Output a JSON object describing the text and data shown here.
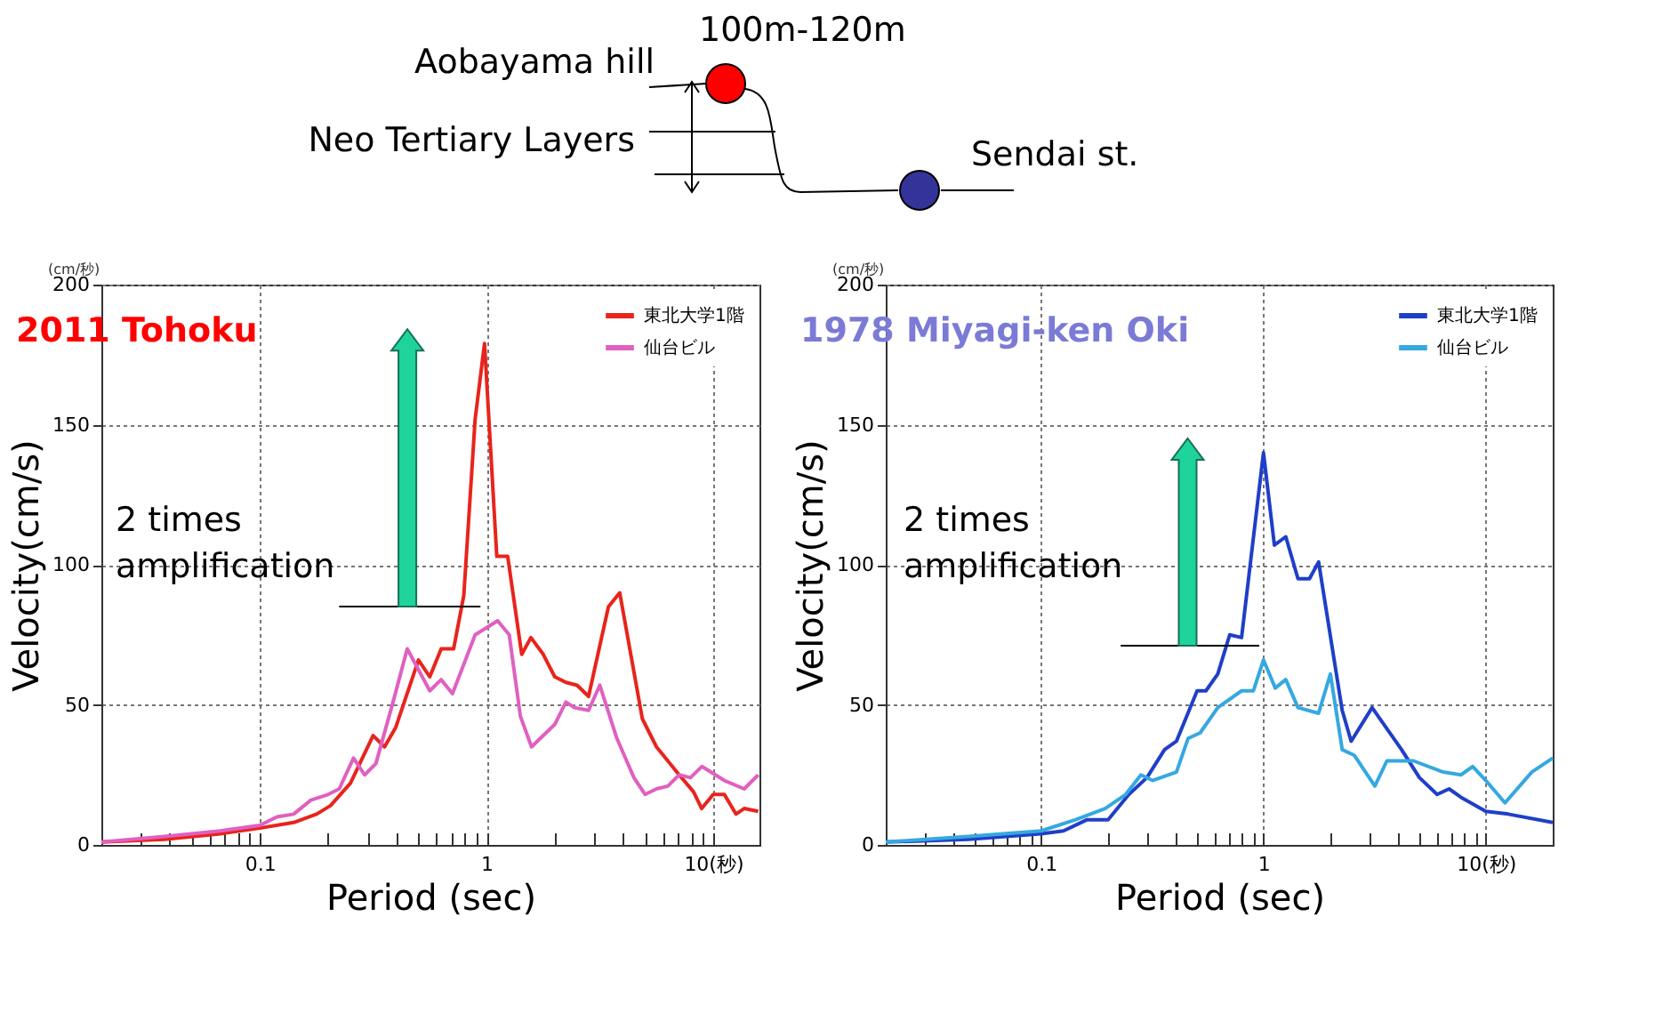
{
  "chart_data": [
    {
      "type": "other",
      "annotations": [
        "100m-120m",
        "Aobayama hill",
        "Neo Tertiary Layers",
        "Sendai st."
      ]
    },
    {
      "type": "line",
      "title": "2011 Tohoku",
      "xlabel": "Period (sec)",
      "ylabel": "Velocity(cm/s)",
      "log": "x",
      "grid": true,
      "legend": "top right",
      "annotations": [
        "(cm/秒)",
        "2 times amplification"
      ],
      "xlim": [
        0.02,
        16
      ],
      "ylim": [
        0,
        200
      ],
      "xticks": [
        {
          "value": 0.03,
          "label": null
        },
        {
          "value": 0.04,
          "label": null
        },
        {
          "value": 0.05,
          "label": null
        },
        {
          "value": 0.06,
          "label": null
        },
        {
          "value": 0.07,
          "label": null
        },
        {
          "value": 0.08,
          "label": null
        },
        {
          "value": 0.09,
          "label": null
        },
        {
          "value": 0.1,
          "label": "0.1"
        },
        {
          "value": 0.2,
          "label": null
        },
        {
          "value": 0.3,
          "label": null
        },
        {
          "value": 0.4,
          "label": null
        },
        {
          "value": 0.5,
          "label": null
        },
        {
          "value": 0.6,
          "label": null
        },
        {
          "value": 0.7,
          "label": null
        },
        {
          "value": 0.8,
          "label": null
        },
        {
          "value": 0.9,
          "label": null
        },
        {
          "value": 1,
          "label": "1"
        },
        {
          "value": 2,
          "label": null
        },
        {
          "value": 3,
          "label": null
        },
        {
          "value": 4,
          "label": null
        },
        {
          "value": 5,
          "label": null
        },
        {
          "value": 6,
          "label": null
        },
        {
          "value": 7,
          "label": null
        },
        {
          "value": 8,
          "label": null
        },
        {
          "value": 9,
          "label": null
        },
        {
          "value": 10,
          "label": "10(秒)"
        }
      ],
      "yticks": [
        0,
        50,
        100,
        150,
        200
      ],
      "series": [
        {
          "name": "東北大学1階",
          "color": "#e8241c",
          "x": [
            0.02,
            0.038,
            0.067,
            0.1,
            0.141,
            0.178,
            0.205,
            0.251,
            0.316,
            0.355,
            0.398,
            0.501,
            0.562,
            0.631,
            0.716,
            0.794,
            0.891,
            0.98,
            1.11,
            1.24,
            1.43,
            1.57,
            1.78,
            2.0,
            2.24,
            2.51,
            2.82,
            3.45,
            3.87,
            4.87,
            5.62,
            7.08,
            8.18,
            8.9,
            10,
            11.2,
            12.6,
            13.7,
            15.8
          ],
          "values": [
            1,
            2,
            4,
            6,
            8,
            11,
            14,
            22,
            39,
            35,
            42,
            66,
            60,
            70,
            70,
            89,
            152,
            179,
            103,
            103,
            68,
            74,
            68,
            60,
            58,
            57,
            53,
            85,
            90,
            45,
            35,
            25,
            19,
            13,
            18,
            18,
            11,
            13,
            12
          ]
        },
        {
          "name": "仙台ビル",
          "color": "#e060c0",
          "x": [
            0.02,
            0.038,
            0.067,
            0.1,
            0.119,
            0.141,
            0.168,
            0.2,
            0.224,
            0.259,
            0.29,
            0.325,
            0.387,
            0.447,
            0.562,
            0.631,
            0.708,
            0.891,
            1.12,
            1.26,
            1.41,
            1.58,
            2.0,
            2.24,
            2.44,
            2.82,
            3.16,
            3.76,
            4.47,
            5.01,
            5.62,
            6.31,
            7.08,
            7.94,
            8.91,
            11.2,
            13.7,
            15.8
          ],
          "values": [
            1,
            3,
            5,
            7,
            10,
            11,
            16,
            18,
            20,
            31,
            25,
            29,
            51,
            70,
            55,
            59,
            54,
            75,
            80,
            75,
            46,
            35,
            43,
            51,
            49,
            48,
            57,
            38,
            24,
            18,
            20,
            21,
            25,
            24,
            28,
            23,
            20,
            25
          ]
        }
      ]
    },
    {
      "type": "line",
      "title": "1978 Miyagi-ken Oki",
      "xlabel": "Period (sec)",
      "ylabel": "Velocity(cm/s)",
      "log": "x",
      "grid": true,
      "legend": "top right",
      "annotations": [
        "(cm/秒)",
        "2 times amplification"
      ],
      "xlim": [
        0.02,
        20
      ],
      "ylim": [
        0,
        200
      ],
      "xticks": [
        {
          "value": 0.03,
          "label": null
        },
        {
          "value": 0.04,
          "label": null
        },
        {
          "value": 0.05,
          "label": null
        },
        {
          "value": 0.06,
          "label": null
        },
        {
          "value": 0.07,
          "label": null
        },
        {
          "value": 0.08,
          "label": null
        },
        {
          "value": 0.09,
          "label": null
        },
        {
          "value": 0.1,
          "label": "0.1"
        },
        {
          "value": 0.2,
          "label": null
        },
        {
          "value": 0.3,
          "label": null
        },
        {
          "value": 0.4,
          "label": null
        },
        {
          "value": 0.5,
          "label": null
        },
        {
          "value": 0.6,
          "label": null
        },
        {
          "value": 0.7,
          "label": null
        },
        {
          "value": 0.8,
          "label": null
        },
        {
          "value": 0.9,
          "label": null
        },
        {
          "value": 1,
          "label": "1"
        },
        {
          "value": 2,
          "label": null
        },
        {
          "value": 3,
          "label": null
        },
        {
          "value": 4,
          "label": null
        },
        {
          "value": 5,
          "label": null
        },
        {
          "value": 6,
          "label": null
        },
        {
          "value": 7,
          "label": null
        },
        {
          "value": 8,
          "label": null
        },
        {
          "value": 9,
          "label": null
        },
        {
          "value": 10,
          "label": "10(秒)"
        }
      ],
      "yticks": [
        0,
        50,
        100,
        150,
        200
      ],
      "series": [
        {
          "name": "東北大学1階",
          "color": "#1f3fc8",
          "x": [
            0.02,
            0.047,
            0.1,
            0.126,
            0.161,
            0.2,
            0.248,
            0.299,
            0.359,
            0.406,
            0.503,
            0.551,
            0.623,
            0.705,
            0.797,
            1.0,
            1.12,
            1.26,
            1.43,
            1.61,
            1.77,
            2.26,
            2.48,
            3.08,
            4.18,
            5.03,
            6.04,
            6.84,
            7.73,
            10,
            12.6,
            20
          ],
          "values": [
            1,
            2,
            4,
            5,
            9,
            9,
            18,
            24,
            34,
            37,
            55,
            55,
            61,
            75,
            74,
            140,
            107,
            110,
            95,
            95,
            101,
            48,
            37,
            49,
            34,
            24,
            18,
            20,
            17,
            12,
            11,
            8
          ]
        },
        {
          "name": "仙台ビル",
          "color": "#35a8e0",
          "x": [
            0.02,
            0.047,
            0.1,
            0.143,
            0.194,
            0.24,
            0.281,
            0.317,
            0.406,
            0.458,
            0.519,
            0.623,
            0.797,
            0.901,
            1.0,
            1.13,
            1.26,
            1.43,
            1.77,
            2.0,
            2.26,
            2.56,
            3.17,
            3.59,
            4.73,
            6.43,
            7.73,
            8.73,
            10,
            12.2,
            16.1,
            20
          ],
          "values": [
            1,
            3,
            5,
            9,
            13,
            18,
            25,
            23,
            26,
            38,
            40,
            49,
            55,
            55,
            66,
            56,
            59,
            49,
            47,
            61,
            34,
            32,
            21,
            30,
            30,
            26,
            25,
            28,
            23,
            15,
            26,
            31
          ]
        }
      ]
    }
  ]
}
